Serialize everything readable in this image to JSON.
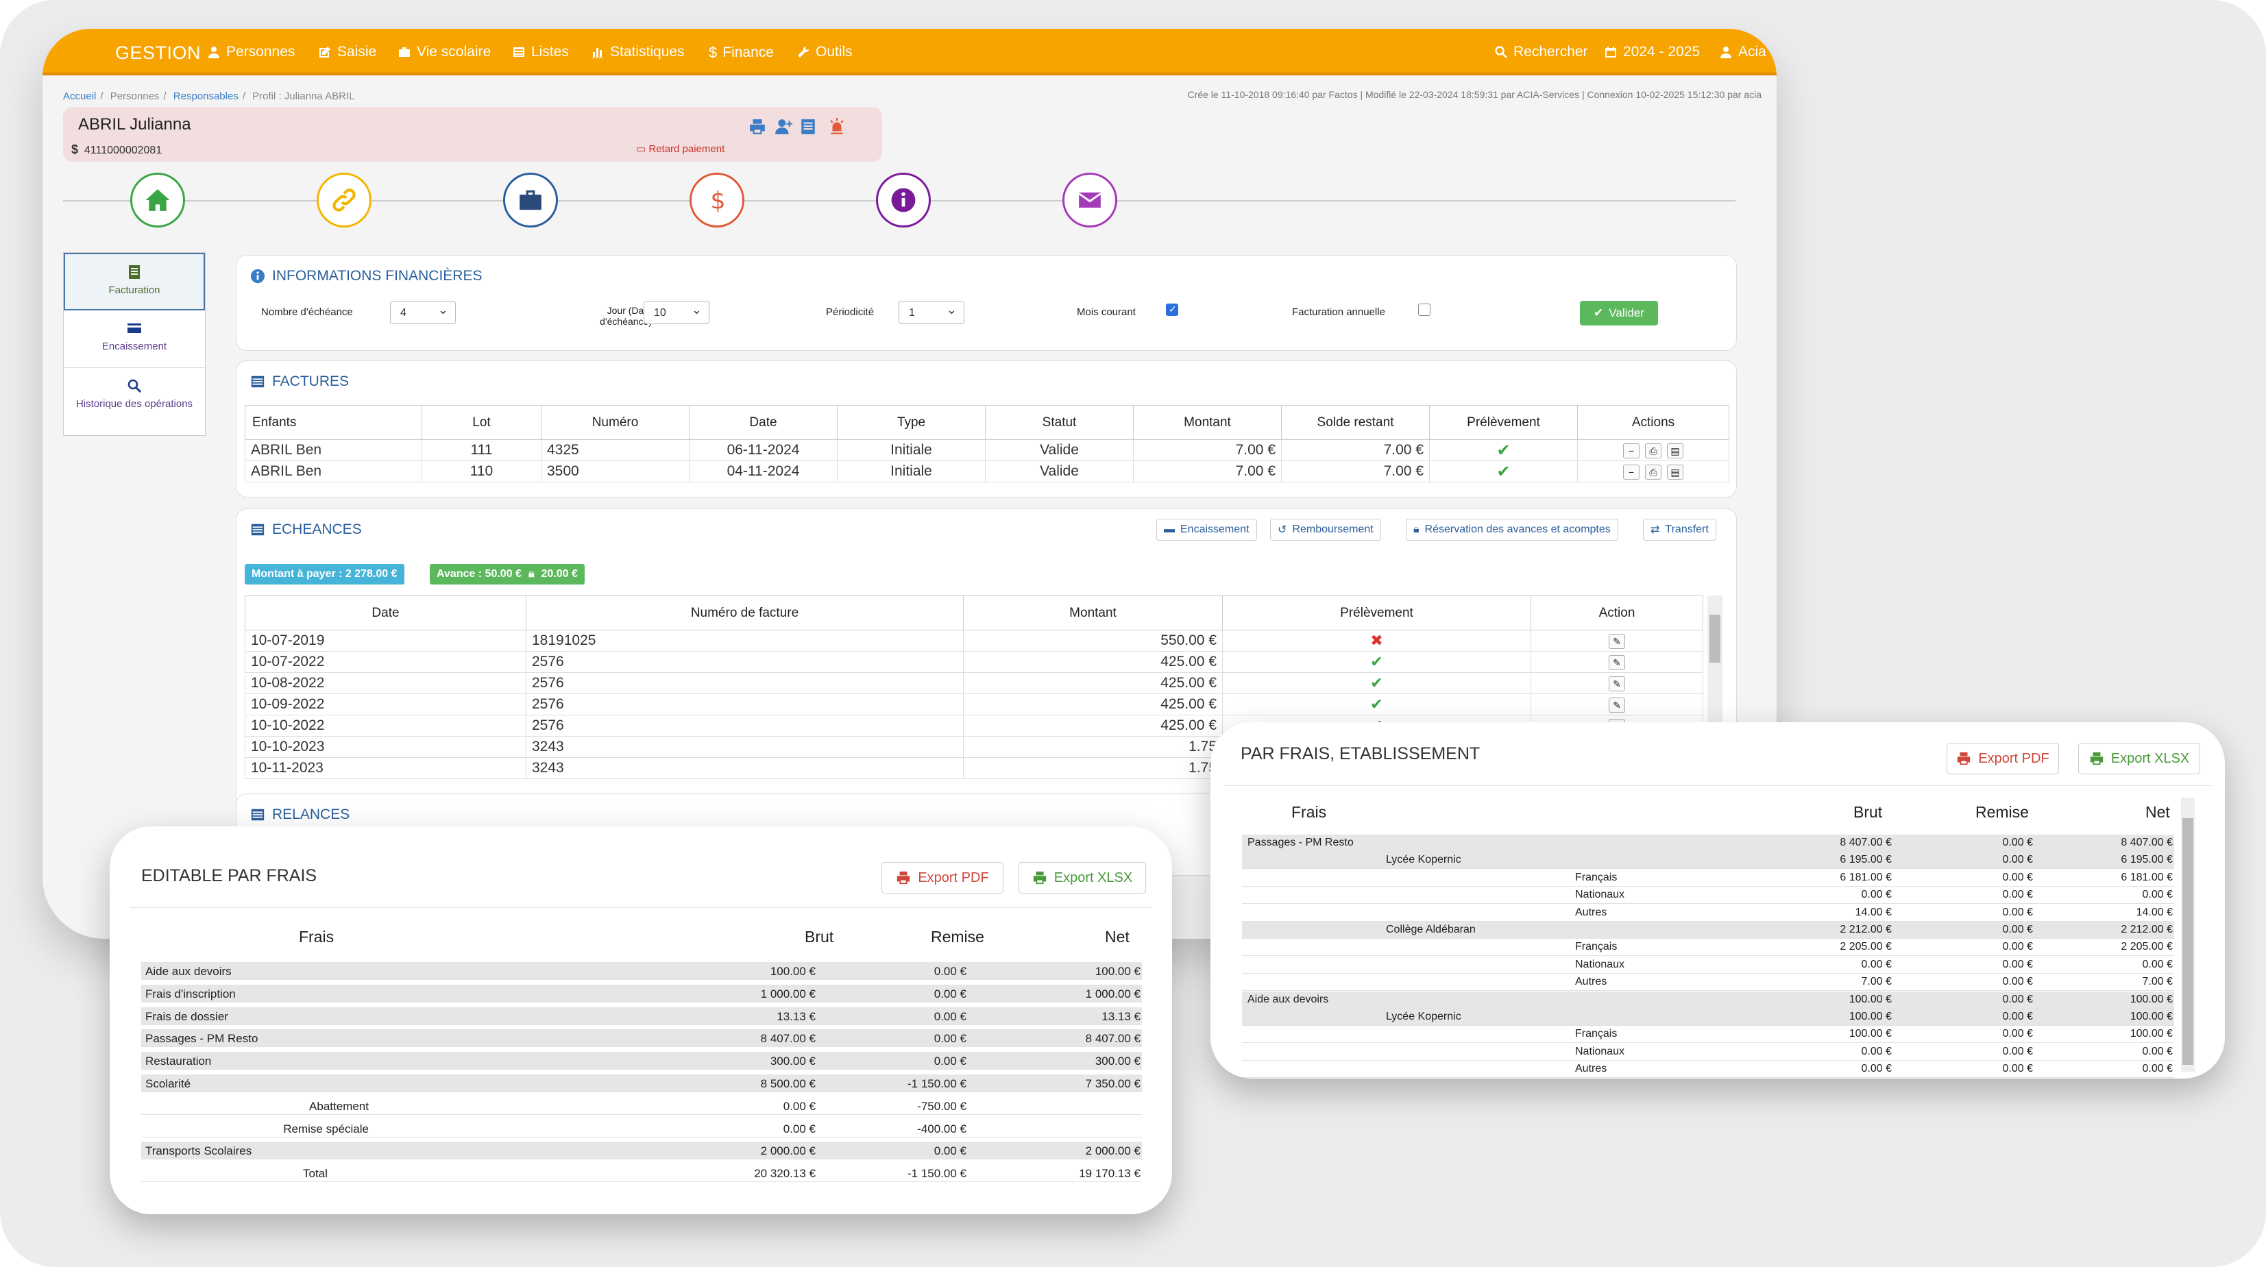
{
  "nav": {
    "brand": "GESTION",
    "menu": [
      "Personnes",
      "Saisie",
      "Vie scolaire",
      "Listes",
      "Statistiques",
      "Finance",
      "Outils"
    ],
    "search": "Rechercher",
    "year": "2024 - 2025",
    "user": "Acia"
  },
  "breadcrumb": [
    "Accueil",
    "Personnes",
    "Responsables",
    "Profil : Julianna ABRIL"
  ],
  "meta": "Crée le 11-10-2018 09:16:40 par Factos | Modifié le 22-03-2024 18:59:31 par ACIA-Services | Connexion 10-02-2025 15:12:30 par acia",
  "profile": {
    "name": "ABRIL Julianna",
    "account": "4111000002081",
    "late": "Retard paiement"
  },
  "side_tabs": [
    "Facturation",
    "Encaissement",
    "Historique des opérations"
  ],
  "fin": {
    "title": "INFORMATIONS FINANCIÈRES",
    "nb_label": "Nombre d'échéance",
    "nb_value": "4",
    "jour_label1": "Jour (Date",
    "jour_label2": "d'échéance)",
    "jour_value": "10",
    "per_label": "Périodicité",
    "per_value": "1",
    "mois_label": "Mois courant",
    "annuelle_label": "Facturation annuelle",
    "valider": "Valider"
  },
  "factures": {
    "title": "FACTURES",
    "headers": [
      "Enfants",
      "Lot",
      "Numéro",
      "Date",
      "Type",
      "Statut",
      "Montant",
      "Solde restant",
      "Prélèvement",
      "Actions"
    ],
    "rows": [
      [
        "ABRIL Ben",
        "111",
        "4325",
        "06-11-2024",
        "Initiale",
        "Valide",
        "7.00 €",
        "7.00 €"
      ],
      [
        "ABRIL Ben",
        "110",
        "3500",
        "04-11-2024",
        "Initiale",
        "Valide",
        "7.00 €",
        "7.00 €"
      ]
    ]
  },
  "echeances": {
    "title": "ECHEANCES",
    "buttons": [
      "Encaissement",
      "Remboursement",
      "Réservation des avances et acomptes",
      "Transfert"
    ],
    "badge_montant": "Montant à payer : 2 278.00 €",
    "badge_avance": "Avance : 50.00 €",
    "badge_lock": "20.00 €",
    "headers": [
      "Date",
      "Numéro de facture",
      "Montant",
      "Prélèvement",
      "Action"
    ],
    "rows": [
      [
        "10-07-2019",
        "18191025",
        "550.00 €",
        "x"
      ],
      [
        "10-07-2022",
        "2576",
        "425.00 €",
        "v"
      ],
      [
        "10-08-2022",
        "2576",
        "425.00 €",
        "v"
      ],
      [
        "10-09-2022",
        "2576",
        "425.00 €",
        "v"
      ],
      [
        "10-10-2022",
        "2576",
        "425.00 €",
        "v"
      ],
      [
        "10-10-2023",
        "3243",
        "1.75",
        ""
      ],
      [
        "10-11-2023",
        "3243",
        "1.75",
        ""
      ]
    ]
  },
  "relances": {
    "title": "RELANCES"
  },
  "editable": {
    "title": "EDITABLE PAR FRAIS",
    "export_pdf": "Export PDF",
    "export_xlsx": "Export XLSX",
    "headers": [
      "Frais",
      "Brut",
      "Remise",
      "Net"
    ],
    "rows": [
      {
        "label": "Aide aux devoirs",
        "brut": "100.00 €",
        "remise": "0.00 €",
        "net": "100.00 €",
        "g": true
      },
      {
        "label": "Frais d'inscription",
        "brut": "1 000.00 €",
        "remise": "0.00 €",
        "net": "1 000.00 €",
        "g": true
      },
      {
        "label": "Frais de dossier",
        "brut": "13.13 €",
        "remise": "0.00 €",
        "net": "13.13 €",
        "g": true
      },
      {
        "label": "Passages - PM Resto",
        "brut": "8 407.00 €",
        "remise": "0.00 €",
        "net": "8 407.00 €",
        "g": true
      },
      {
        "label": "Restauration",
        "brut": "300.00 €",
        "remise": "0.00 €",
        "net": "300.00 €",
        "g": true
      },
      {
        "label": "Scolarité",
        "brut": "8 500.00 €",
        "remise": "-1 150.00 €",
        "net": "7 350.00 €",
        "g": true
      },
      {
        "label": "Abattement",
        "brut": "0.00 €",
        "remise": "-750.00 €",
        "net": "",
        "sub": true
      },
      {
        "label": "Remise spéciale",
        "brut": "0.00 €",
        "remise": "-400.00 €",
        "net": "",
        "sub": true
      },
      {
        "label": "Transports Scolaires",
        "brut": "2 000.00 €",
        "remise": "0.00 €",
        "net": "2 000.00 €",
        "g": true
      },
      {
        "label": "Total",
        "brut": "20 320.13 €",
        "remise": "-1 150.00 €",
        "net": "19 170.13 €",
        "total": true
      }
    ]
  },
  "parfrais": {
    "title": "PAR FRAIS, ETABLISSEMENT",
    "export_pdf": "Export PDF",
    "export_xlsx": "Export XLSX",
    "headers": [
      "Frais",
      "Brut",
      "Remise",
      "Net"
    ],
    "rows": [
      {
        "l1": "Passages - PM Resto",
        "brut": "8 407.00 €",
        "remise": "0.00 €",
        "net": "8 407.00 €",
        "lvl": 1
      },
      {
        "l1": "Lycée Kopernic",
        "brut": "6 195.00 €",
        "remise": "0.00 €",
        "net": "6 195.00 €",
        "lvl": 2
      },
      {
        "l1": "Français",
        "brut": "6 181.00 €",
        "remise": "0.00 €",
        "net": "6 181.00 €",
        "lvl": 3
      },
      {
        "l1": "Nationaux",
        "brut": "0.00 €",
        "remise": "0.00 €",
        "net": "0.00 €",
        "lvl": 3
      },
      {
        "l1": "Autres",
        "brut": "14.00 €",
        "remise": "0.00 €",
        "net": "14.00 €",
        "lvl": 3
      },
      {
        "l1": "Collège Aldébaran",
        "brut": "2 212.00 €",
        "remise": "0.00 €",
        "net": "2 212.00 €",
        "lvl": 2
      },
      {
        "l1": "Français",
        "brut": "2 205.00 €",
        "remise": "0.00 €",
        "net": "2 205.00 €",
        "lvl": 3
      },
      {
        "l1": "Nationaux",
        "brut": "0.00 €",
        "remise": "0.00 €",
        "net": "0.00 €",
        "lvl": 3
      },
      {
        "l1": "Autres",
        "brut": "7.00 €",
        "remise": "0.00 €",
        "net": "7.00 €",
        "lvl": 3
      },
      {
        "l1": "Aide aux devoirs",
        "brut": "100.00 €",
        "remise": "0.00 €",
        "net": "100.00 €",
        "lvl": 1
      },
      {
        "l1": "Lycée Kopernic",
        "brut": "100.00 €",
        "remise": "0.00 €",
        "net": "100.00 €",
        "lvl": 2
      },
      {
        "l1": "Français",
        "brut": "100.00 €",
        "remise": "0.00 €",
        "net": "100.00 €",
        "lvl": 3
      },
      {
        "l1": "Nationaux",
        "brut": "0.00 €",
        "remise": "0.00 €",
        "net": "0.00 €",
        "lvl": 3
      },
      {
        "l1": "Autres",
        "brut": "0.00 €",
        "remise": "0.00 €",
        "net": "0.00 €",
        "lvl": 3
      }
    ]
  },
  "colors": {
    "nav": "#f7a300",
    "accent": "#2a5e9c",
    "green": "#5cb85c",
    "red": "#d0463a"
  }
}
